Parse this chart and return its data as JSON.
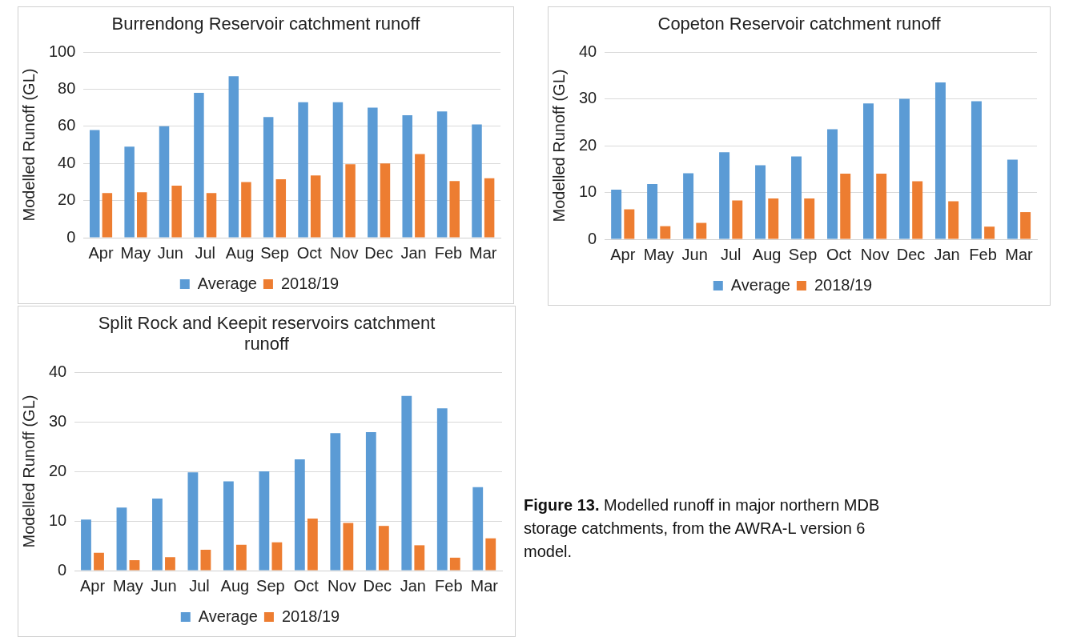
{
  "chart_data": [
    {
      "type": "bar",
      "title": "Burrendong Reservoir catchment runoff",
      "ylabel": "Modelled Runoff (GL)",
      "categories": [
        "Apr",
        "May",
        "Jun",
        "Jul",
        "Aug",
        "Sep",
        "Oct",
        "Nov",
        "Dec",
        "Jan",
        "Feb",
        "Mar"
      ],
      "series": [
        {
          "name": "Average",
          "color": "#5b9bd5",
          "values": [
            58,
            49,
            60,
            78,
            87,
            65,
            73,
            73,
            70,
            66,
            68,
            61
          ]
        },
        {
          "name": "2018/19",
          "color": "#ed7d31",
          "values": [
            24,
            24.5,
            28,
            24,
            30,
            31.5,
            33.5,
            39.5,
            40,
            45,
            30.5,
            32
          ]
        }
      ],
      "ylim": [
        0,
        100
      ],
      "yticks": [
        0,
        20,
        40,
        60,
        80,
        100
      ],
      "grid": "y",
      "legend": "bottom"
    },
    {
      "type": "bar",
      "title": "Copeton Reservoir catchment runoff",
      "ylabel": "Modelled Runoff (GL)",
      "categories": [
        "Apr",
        "May",
        "Jun",
        "Jul",
        "Aug",
        "Sep",
        "Oct",
        "Nov",
        "Dec",
        "Jan",
        "Feb",
        "Mar"
      ],
      "series": [
        {
          "name": "Average",
          "color": "#5b9bd5",
          "values": [
            10.6,
            11.8,
            14.1,
            18.6,
            15.8,
            17.7,
            23.5,
            29,
            30,
            33.5,
            29.5,
            17
          ]
        },
        {
          "name": "2018/19",
          "color": "#ed7d31",
          "values": [
            6.4,
            2.8,
            3.5,
            8.3,
            8.7,
            8.7,
            14,
            14,
            12.4,
            8.1,
            2.7,
            5.8
          ]
        }
      ],
      "ylim": [
        0,
        40
      ],
      "yticks": [
        0,
        10,
        20,
        30,
        40
      ],
      "grid": "y",
      "legend": "bottom"
    },
    {
      "type": "bar",
      "title": "Split Rock and Keepit reservoirs catchment runoff",
      "ylabel": "Modelled Runoff (GL)",
      "categories": [
        "Apr",
        "May",
        "Jun",
        "Jul",
        "Aug",
        "Sep",
        "Oct",
        "Nov",
        "Dec",
        "Jan",
        "Feb",
        "Mar"
      ],
      "series": [
        {
          "name": "Average",
          "color": "#5b9bd5",
          "values": [
            10.3,
            12.7,
            14.5,
            19.8,
            18,
            20,
            22.4,
            27.7,
            27.9,
            35.2,
            32.7,
            16.8
          ]
        },
        {
          "name": "2018/19",
          "color": "#ed7d31",
          "values": [
            3.6,
            2.1,
            2.7,
            4.2,
            5.2,
            5.7,
            10.5,
            9.6,
            9,
            5.1,
            2.6,
            6.5
          ]
        }
      ],
      "ylim": [
        0,
        40
      ],
      "yticks": [
        0,
        10,
        20,
        30,
        40
      ],
      "grid": "y",
      "legend": "bottom"
    },
    {
      "type": "other",
      "title": "Figure 13.",
      "annotations": [
        "Modelled runoff in major northern MDB storage catchments, from the AWRA-L version 6 model."
      ]
    }
  ]
}
